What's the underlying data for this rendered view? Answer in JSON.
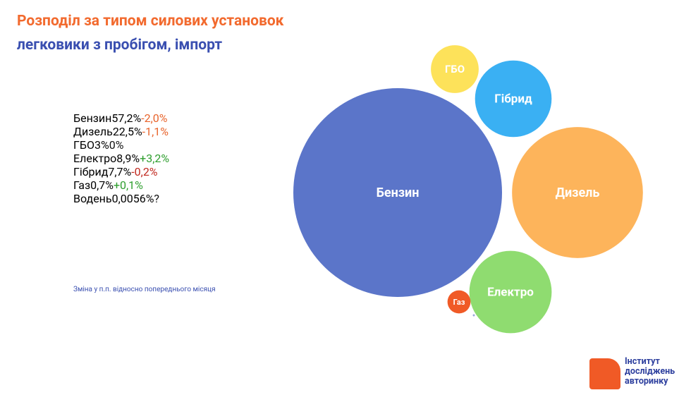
{
  "chart_data": {
    "type": "bubble",
    "title": "Розподіл за типом силових установок",
    "subtitle": "легковики з пробігом, імпорт",
    "categories": [
      "Бензин",
      "Дизель",
      "ГБО",
      "Електро",
      "Гібрид",
      "Газ",
      "Водень"
    ],
    "values": [
      57.2,
      22.5,
      3,
      8.9,
      7.7,
      0.7,
      0.0056
    ],
    "value_labels": [
      "57,2%",
      "22,5%",
      "3%",
      "8,9%",
      "7,7%",
      "0,7%",
      "0,0056%"
    ],
    "changes": [
      -2.0,
      -1.1,
      0,
      3.2,
      -0.2,
      0.1,
      null
    ],
    "change_labels": [
      "-2,0%",
      "-1,1%",
      "0%",
      "+3,2%",
      "-0,2%",
      "+0,1%",
      "?"
    ],
    "colors": [
      "#5b75c9",
      "#fdb45b",
      "#fde25a",
      "#8fdc70",
      "#3ab0f3",
      "#f05a26",
      "#9aa7d8"
    ],
    "note": "Зміна у п.п. відносно попереднього місяця"
  },
  "logo": [
    "Інститут",
    "досліджень",
    "авторинку"
  ]
}
